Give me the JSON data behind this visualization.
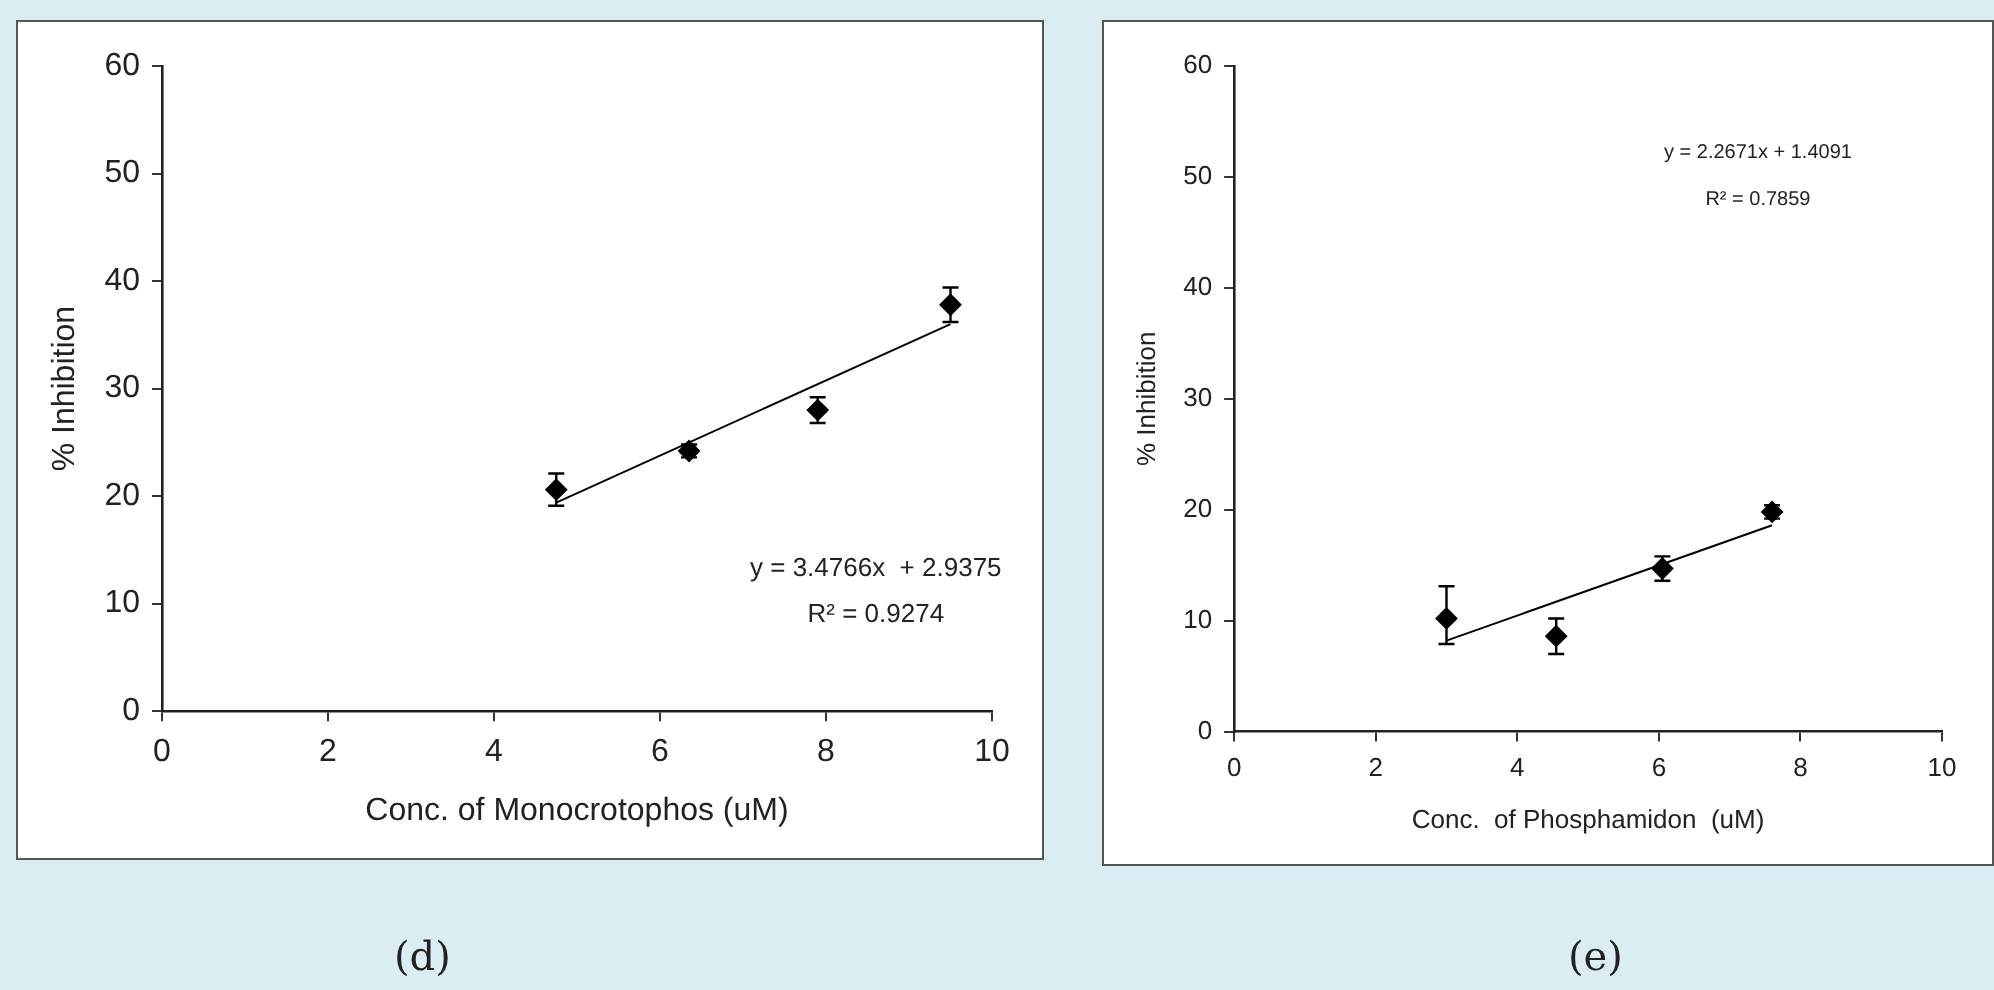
{
  "chart_data": [
    {
      "type": "scatter",
      "xlabel": "Conc. of Monocrotophos (uM)",
      "ylabel": "% Inhibition",
      "xlim": [
        0,
        10
      ],
      "xticks": [
        0,
        2,
        4,
        6,
        8,
        10
      ],
      "ylim": [
        0,
        60
      ],
      "yticks": [
        0,
        10,
        20,
        30,
        40,
        50,
        60
      ],
      "marker": "diamond",
      "annotations": [
        "y = 3.4766x  + 2.9375",
        "R² = 0.9274",
        "(d)"
      ],
      "series": [
        {
          "color": "#000000",
          "x": [
            4.75,
            6.35,
            7.9,
            9.5
          ],
          "values": [
            20.6,
            24.2,
            28.0,
            37.8
          ],
          "errors": [
            1.5,
            0.6,
            1.2,
            1.6
          ]
        },
        {
          "type": "line",
          "marker": "none",
          "color": "#000000",
          "x": [
            4.75,
            9.5
          ],
          "values": [
            19.4,
            36.0
          ]
        }
      ]
    },
    {
      "type": "scatter",
      "xlabel": "Conc.  of Phosphamidon  (uM)",
      "ylabel": "% Inhibition",
      "xlim": [
        0,
        10
      ],
      "xticks": [
        0,
        2,
        4,
        6,
        8,
        10
      ],
      "ylim": [
        0,
        60
      ],
      "yticks": [
        0,
        10,
        20,
        30,
        40,
        50,
        60
      ],
      "marker": "diamond",
      "annotations": [
        "y = 2.2671x + 1.4091",
        "R² = 0.7859",
        "(e)"
      ],
      "series": [
        {
          "color": "#000000",
          "x": [
            3.0,
            4.55,
            6.05,
            7.6
          ],
          "values": [
            10.2,
            8.6,
            14.7,
            19.8
          ],
          "errors": [
            [
              7.9,
              13.1
            ],
            1.6,
            1.1,
            0.6
          ]
        },
        {
          "type": "line",
          "marker": "none",
          "color": "#000000",
          "x": [
            3.0,
            7.6
          ],
          "values": [
            8.2,
            18.6
          ]
        }
      ]
    }
  ]
}
